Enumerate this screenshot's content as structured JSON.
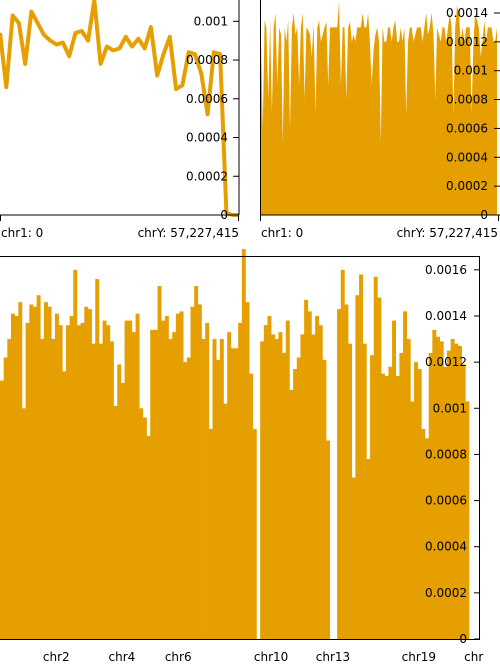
{
  "colors": {
    "series": "#e69f00",
    "axis": "#000000"
  },
  "chart_data": [
    {
      "type": "line",
      "y_ticks": [
        {
          "value": 0,
          "label": "0"
        },
        {
          "value": 0.0002,
          "label": "0.0002"
        },
        {
          "value": 0.0004,
          "label": "0.0004"
        },
        {
          "value": 0.0006,
          "label": "0.0006"
        },
        {
          "value": 0.0008,
          "label": "0.0008"
        },
        {
          "value": 0.001,
          "label": "0.001"
        }
      ],
      "ylim": [
        0,
        0.00111
      ],
      "x_start_label": "chr1: 0",
      "x_end_label": "chrY: 57,227,415",
      "values": [
        0.00094,
        0.00066,
        0.00103,
        0.00099,
        0.00078,
        0.00105,
        0.00099,
        0.00093,
        0.0009,
        0.00088,
        0.00089,
        0.00082,
        0.00094,
        0.00095,
        0.0009,
        0.00111,
        0.00078,
        0.00087,
        0.00085,
        0.00086,
        0.00092,
        0.00087,
        0.00091,
        0.00086,
        0.00097,
        0.00072,
        0.00083,
        0.00092,
        0.00065,
        0.00067,
        0.00084,
        0.00083,
        0.00073,
        0.00052,
        0.00084,
        0.00083,
        1e-05,
        0.0,
        0.0
      ]
    },
    {
      "type": "area",
      "y_ticks": [
        {
          "value": 0,
          "label": "0"
        },
        {
          "value": 0.0002,
          "label": "0.0002"
        },
        {
          "value": 0.0004,
          "label": "0.0004"
        },
        {
          "value": 0.0006,
          "label": "0.0006"
        },
        {
          "value": 0.0008,
          "label": "0.0008"
        },
        {
          "value": 0.001,
          "label": "0.001"
        },
        {
          "value": 0.0012,
          "label": "0.0012"
        },
        {
          "value": 0.0014,
          "label": "0.0014"
        }
      ],
      "ylim": [
        0,
        0.00149
      ],
      "x_start_label": "chr1: 0",
      "x_end_label": "chrY: 57,227,415",
      "values": [
        0.0012,
        0.0006,
        0.00135,
        0.0013,
        0.0008,
        0.00135,
        0.0007,
        0.0013,
        0.0014,
        0.0009,
        0.0013,
        0.00125,
        0.0005,
        0.0013,
        0.0012,
        0.00135,
        0.0006,
        0.0013,
        0.0014,
        0.00125,
        0.0013,
        0.0009,
        0.0013,
        0.0014,
        0.0008,
        0.0013,
        0.00128,
        0.00125,
        0.0011,
        0.00132,
        0.0007,
        0.0013,
        0.00135,
        0.0012,
        0.00125,
        0.0013,
        0.00134,
        0.0009,
        0.0013,
        0.0013,
        0.0013,
        0.0013,
        0.0013,
        0.00148,
        0.0009,
        0.0013,
        0.0013,
        0.0008,
        0.0013,
        0.00134,
        0.0012,
        0.00125,
        0.0012,
        0.0013,
        0.0013,
        0.0013,
        0.0014,
        0.0013,
        0.0013,
        0.0014,
        0.0012,
        0.0009,
        0.00115,
        0.00125,
        0.0013,
        0.0012,
        0.0005,
        0.0013,
        0.0012,
        0.0012,
        0.0013,
        0.0013,
        0.0012,
        0.0013,
        0.00135,
        0.0012,
        0.0012,
        0.0013,
        0.0012,
        0.0013,
        0.0007,
        0.0012,
        0.0013,
        0.0013,
        0.0012,
        0.00125,
        0.0013,
        0.0013,
        0.0013,
        0.0012,
        0.0013,
        0.0014,
        0.00125,
        0.0013,
        0.0014,
        0.00125,
        0.0008,
        0.0013,
        0.00125,
        0.0012,
        0.0013,
        0.0013,
        0.0012,
        0.0013,
        0.0014,
        0.0013,
        0.0007,
        0.0013,
        0.00145,
        0.0014,
        0.0012,
        0.0013,
        0.0012,
        0.0013,
        0.0013,
        0.0013,
        0.0007,
        0.0012,
        0.0014,
        0.00135,
        0.0013,
        0.0011,
        0.0012,
        0.00135,
        0.0012,
        0.0013,
        0.0013,
        0.0013,
        0.0012,
        0.0012,
        0.0013
      ]
    },
    {
      "type": "bar",
      "y_ticks": [
        {
          "value": 0,
          "label": "0"
        },
        {
          "value": 0.0002,
          "label": "0.0002"
        },
        {
          "value": 0.0004,
          "label": "0.0004"
        },
        {
          "value": 0.0006,
          "label": "0.0006"
        },
        {
          "value": 0.0008,
          "label": "0.0008"
        },
        {
          "value": 0.001,
          "label": "0.001"
        },
        {
          "value": 0.0012,
          "label": "0.0012"
        },
        {
          "value": 0.0014,
          "label": "0.0014"
        },
        {
          "value": 0.0016,
          "label": "0.0016"
        }
      ],
      "ylim": [
        0,
        0.00166
      ],
      "chromosome_labels": [
        {
          "label": "chr2",
          "position": 0.12
        },
        {
          "label": "chr4",
          "position": 0.26
        },
        {
          "label": "chr6",
          "position": 0.38
        },
        {
          "label": "chr10",
          "position": 0.578
        },
        {
          "label": "chr13",
          "position": 0.71
        },
        {
          "label": "chr19",
          "position": 0.893
        },
        {
          "label": "chr",
          "position": 1.01
        }
      ],
      "values": [
        0.00112,
        0.00122,
        0.0013,
        0.00141,
        0.0014,
        0.00146,
        0.001,
        0.00137,
        0.00145,
        0.00144,
        0.00149,
        0.0013,
        0.00146,
        0.00144,
        0.0013,
        0.00141,
        0.00136,
        0.00116,
        0.00136,
        0.0014,
        0.0016,
        0.00136,
        0.00137,
        0.00144,
        0.00143,
        0.00128,
        0.00156,
        0.00128,
        0.00138,
        0.00136,
        0.00129,
        0.00101,
        0.00119,
        0.00111,
        0.00138,
        0.00138,
        0.00133,
        0.00141,
        0.001,
        0.00096,
        0.00088,
        0.00134,
        0.00134,
        0.00153,
        0.00138,
        0.0014,
        0.0013,
        0.00133,
        0.00141,
        0.00142,
        0.0012,
        0.00122,
        0.00144,
        0.00153,
        0.00145,
        0.0013,
        0.00137,
        0.00091,
        0.0013,
        0.00121,
        0.0013,
        0.00102,
        0.00133,
        0.00126,
        0.00126,
        0.00137,
        0.00169,
        0.00146,
        0.00115,
        0.00091,
        0.0,
        0.00129,
        0.00136,
        0.0014,
        0.00132,
        0.0013,
        0.00133,
        0.00124,
        0.00138,
        0.00108,
        0.00117,
        0.00122,
        0.00132,
        0.00147,
        0.00142,
        0.00132,
        0.0014,
        0.00136,
        0.00121,
        0.00086,
        0.0,
        0.0,
        0.00143,
        0.0016,
        0.00145,
        0.00128,
        0.0007,
        0.00149,
        0.00158,
        0.00128,
        0.00078,
        0.00123,
        0.00157,
        0.00148,
        0.00115,
        0.00114,
        0.00118,
        0.00138,
        0.00114,
        0.00124,
        0.00142,
        0.0013,
        0.00103,
        0.0012,
        0.00117,
        0.00091,
        0.00087,
        0.00124,
        0.00134,
        0.00131,
        0.00129,
        0.00118,
        0.00125,
        0.0013,
        0.00128,
        0.00127,
        0.00119,
        0.00103
      ]
    }
  ]
}
